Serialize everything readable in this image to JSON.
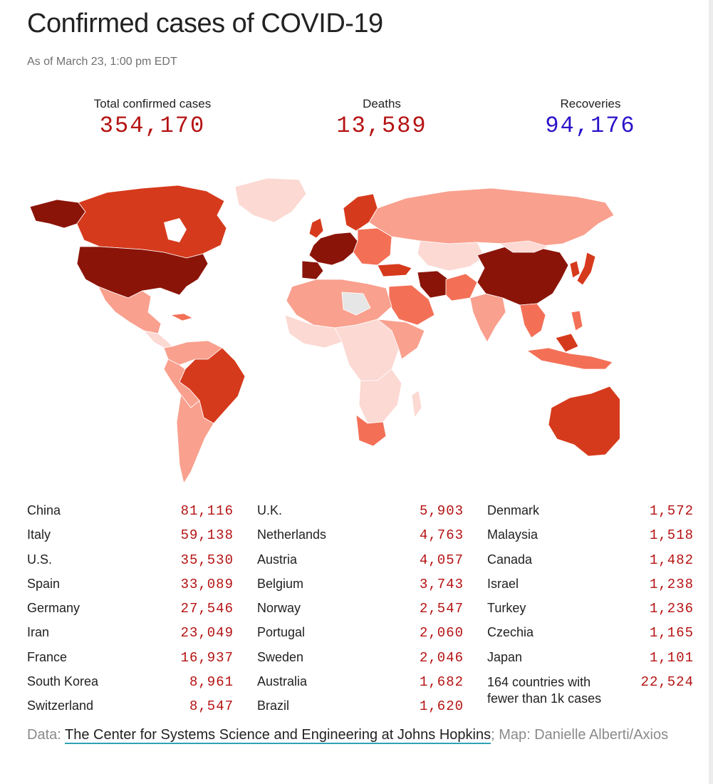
{
  "header": {
    "title": "Confirmed cases of COVID-19",
    "subtitle": "As of March 23, 1:00 pm EDT"
  },
  "stats": {
    "total": {
      "label": "Total confirmed cases",
      "value": "354,170",
      "color": "#b51212"
    },
    "deaths": {
      "label": "Deaths",
      "value": "13,589",
      "color": "#b51212"
    },
    "recoveries": {
      "label": "Recoveries",
      "value": "94,176",
      "color": "#2a13c9"
    }
  },
  "map": {
    "legend_scale": [
      "#fcd9d3",
      "#f9a08e",
      "#f37057",
      "#d63a1c",
      "#8b1409"
    ],
    "no_data_color": "#e6e6e6"
  },
  "table": {
    "columns": [
      [
        {
          "country": "China",
          "cases": "81,116"
        },
        {
          "country": "Italy",
          "cases": "59,138"
        },
        {
          "country": "U.S.",
          "cases": "35,530"
        },
        {
          "country": "Spain",
          "cases": "33,089"
        },
        {
          "country": "Germany",
          "cases": "27,546"
        },
        {
          "country": "Iran",
          "cases": "23,049"
        },
        {
          "country": "France",
          "cases": "16,937"
        },
        {
          "country": "South Korea",
          "cases": "8,961"
        },
        {
          "country": "Switzerland",
          "cases": "8,547"
        }
      ],
      [
        {
          "country": "U.K.",
          "cases": "5,903"
        },
        {
          "country": "Netherlands",
          "cases": "4,763"
        },
        {
          "country": "Austria",
          "cases": "4,057"
        },
        {
          "country": "Belgium",
          "cases": "3,743"
        },
        {
          "country": "Norway",
          "cases": "2,547"
        },
        {
          "country": "Portugal",
          "cases": "2,060"
        },
        {
          "country": "Sweden",
          "cases": "2,046"
        },
        {
          "country": "Australia",
          "cases": "1,682"
        },
        {
          "country": "Brazil",
          "cases": "1,620"
        }
      ],
      [
        {
          "country": "Denmark",
          "cases": "1,572"
        },
        {
          "country": "Malaysia",
          "cases": "1,518"
        },
        {
          "country": "Canada",
          "cases": "1,482"
        },
        {
          "country": "Israel",
          "cases": "1,238"
        },
        {
          "country": "Turkey",
          "cases": "1,236"
        },
        {
          "country": "Czechia",
          "cases": "1,165"
        },
        {
          "country": "Japan",
          "cases": "1,101"
        },
        {
          "country": "164 countries with fewer than 1k cases",
          "cases": "22,524"
        }
      ]
    ]
  },
  "source": {
    "prefix": "Data: ",
    "link_text": "The Center for Systems Science and Engineering at Johns Hopkins",
    "suffix": "; Map: Danielle Alberti/Axios",
    "link_underline_color": "#2fa2b5"
  }
}
